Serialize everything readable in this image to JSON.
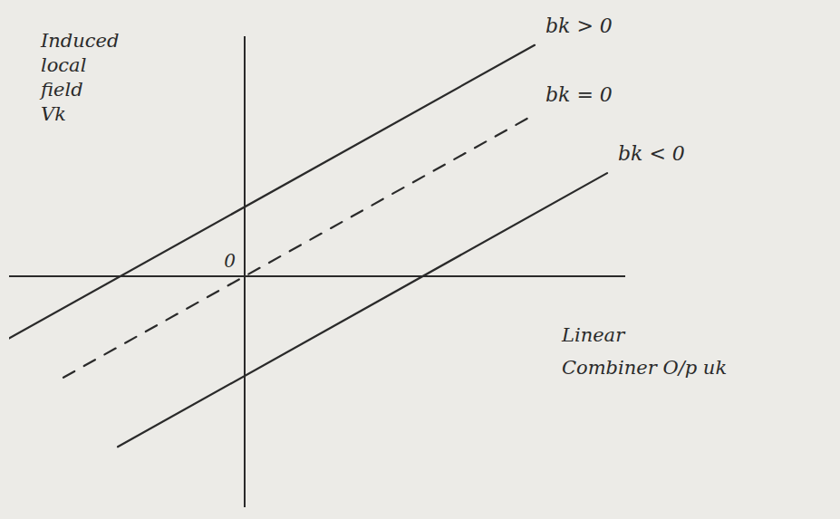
{
  "chart_data": {
    "type": "line",
    "x_label": "Linear Combiner O/p uk",
    "y_label": "Induced local field Vk",
    "xlim": [
      -2.6,
      4.2
    ],
    "ylim": [
      -2.6,
      2.7
    ],
    "xticks": [],
    "yticks": [
      0
    ],
    "tick_labels": "y",
    "grid": false,
    "series": [
      {
        "name": "bk > 0",
        "color": "#2a2a2a",
        "line_style": "solid",
        "x": [
          -2.6,
          3.2
        ],
        "values": [
          -0.7,
          2.6
        ]
      },
      {
        "name": "bk = 0",
        "color": "#2a2a2a",
        "line_style": "dashed",
        "x": [
          -2.0,
          3.2
        ],
        "values": [
          -1.14,
          1.82
        ]
      },
      {
        "name": "bk < 0",
        "color": "#2a2a2a",
        "line_style": "solid",
        "x": [
          -1.4,
          4.0
        ],
        "values": [
          -1.92,
          1.16
        ]
      }
    ]
  }
}
